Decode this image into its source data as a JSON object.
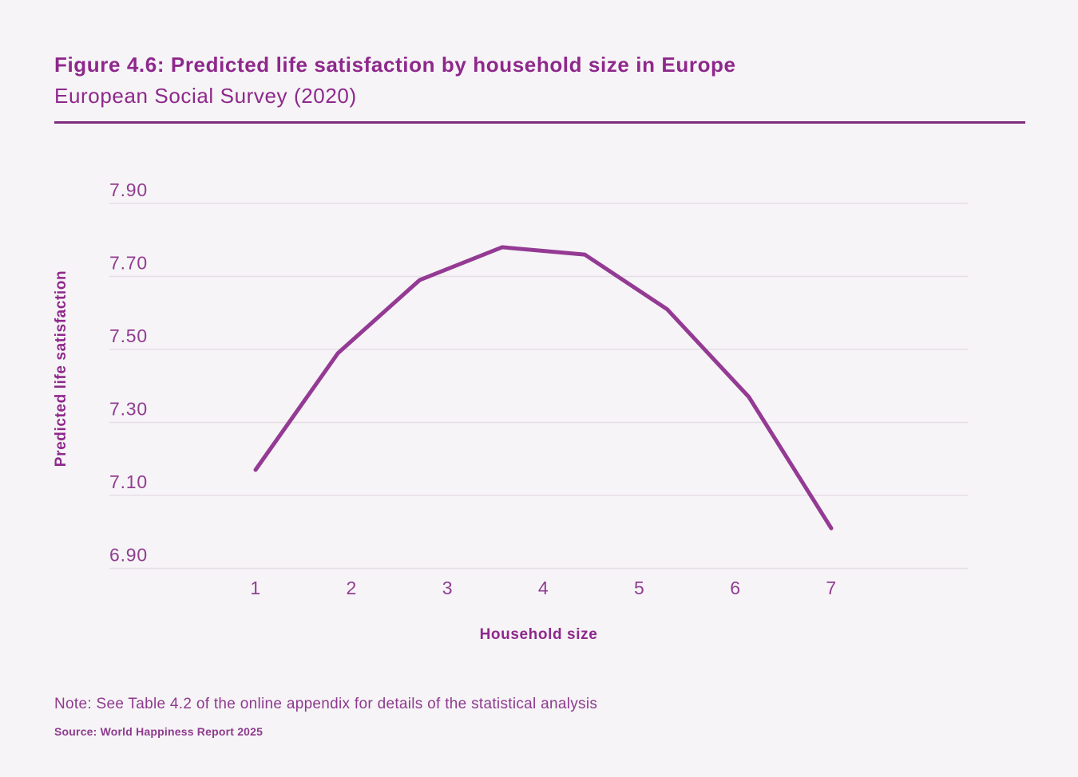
{
  "header": {
    "title": "Figure 4.6: Predicted life satisfaction by household size in Europe",
    "subtitle": "European Social Survey (2020)"
  },
  "chart_data": {
    "type": "line",
    "title": "Predicted life satisfaction by household size in Europe",
    "xlabel": "Household size",
    "ylabel": "Predicted life satisfaction",
    "x_ticks": {
      "labels": [
        "1",
        "2",
        "3",
        "4",
        "5",
        "6",
        "7"
      ],
      "values": [
        1,
        2,
        3,
        4,
        5,
        6,
        7
      ]
    },
    "y_ticks": {
      "labels": [
        "7.90",
        "7.70",
        "7.50",
        "7.30",
        "7.10",
        "6.90"
      ],
      "values": [
        7.9,
        7.7,
        7.5,
        7.3,
        7.1,
        6.9
      ]
    },
    "ylim": [
      6.9,
      7.9
    ],
    "xlim": [
      1,
      7
    ],
    "grid": "horizontal-only",
    "legend": "none",
    "series": [
      {
        "name": "Predicted life satisfaction",
        "points": [
          [
            1.0,
            7.17
          ],
          [
            1.86,
            7.49
          ],
          [
            2.71,
            7.69
          ],
          [
            3.57,
            7.78
          ],
          [
            4.43,
            7.76
          ],
          [
            5.29,
            7.61
          ],
          [
            6.14,
            7.37
          ],
          [
            7.0,
            7.01
          ]
        ]
      }
    ]
  },
  "note": {
    "text": "Note: See Table 4.2 of the online appendix for details of the statistical analysis"
  },
  "source": {
    "text": "Source: World Happiness Report 2025"
  },
  "colors": {
    "background": "#F6F4F6",
    "heading": "#8E288C",
    "divider": "#7E2C7E",
    "tick_label": "#913D91",
    "grid_line": "#E5DEE6",
    "series_line": "#943A94",
    "note_text": "#8E3A8E"
  }
}
